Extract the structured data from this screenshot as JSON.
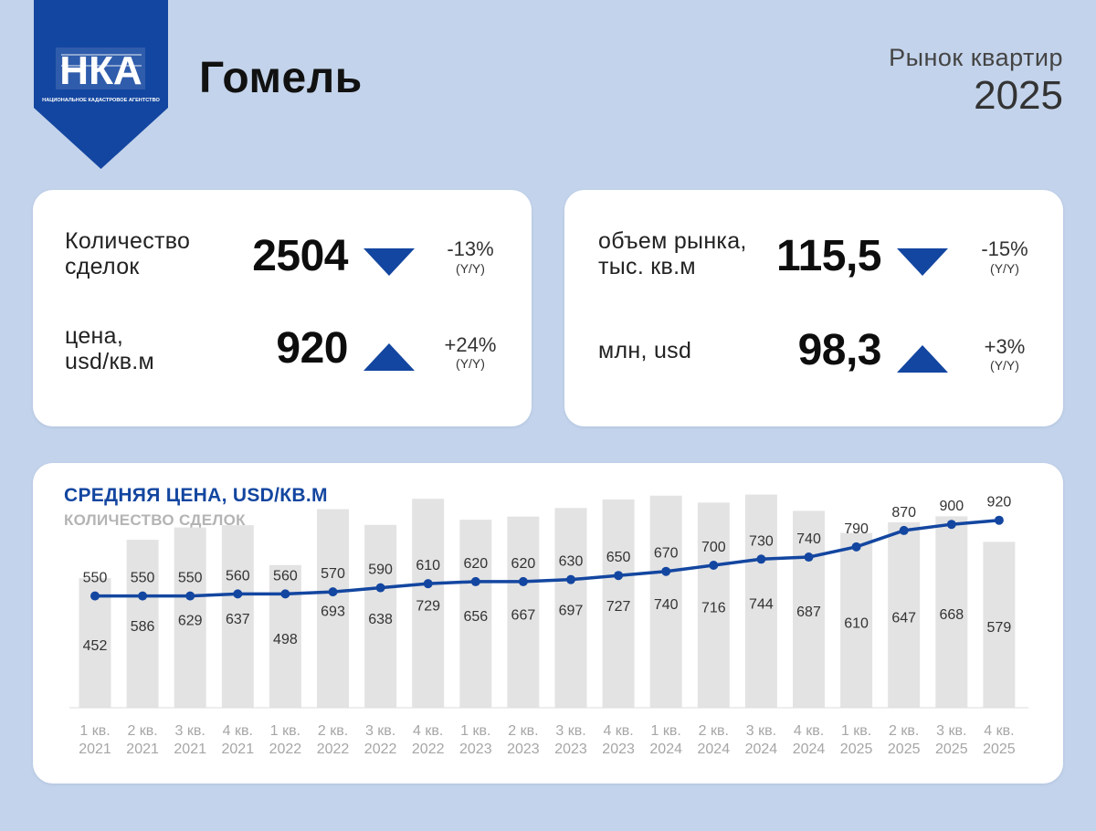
{
  "header": {
    "logo_text": "НКА",
    "logo_caption": "НАЦИОНАЛЬНОЕ КАДАСТРОВОЕ АГЕНТСТВО",
    "city": "Гомель",
    "report_name": "Рынок квартир",
    "year": "2025"
  },
  "colors": {
    "background": "#c3d3eb",
    "brand_blue": "#1346a0",
    "bar_gray": "#e3e3e3",
    "card": "#ffffff"
  },
  "kpi_left": [
    {
      "label": "Количество\nсделок",
      "value": "2504",
      "direction": "down",
      "change": "-13%",
      "period": "(Y/Y)"
    },
    {
      "label": "цена,\nusd/кв.м",
      "value": "920",
      "direction": "up",
      "change": "+24%",
      "period": "(Y/Y)"
    }
  ],
  "kpi_right": [
    {
      "label": "объем рынка,\nтыс. кв.м",
      "value": "115,5",
      "direction": "down",
      "change": "-15%",
      "period": "(Y/Y)"
    },
    {
      "label": "млн, usd",
      "value": "98,3",
      "direction": "up",
      "change": "+3%",
      "period": "(Y/Y)"
    }
  ],
  "chart_data": {
    "type": "bar",
    "title": "СРЕДНЯЯ ЦЕНА, USD/КВ.М",
    "subtitle": "КОЛИЧЕСТВО СДЕЛОК",
    "categories": [
      [
        "1 кв.",
        "2021"
      ],
      [
        "2 кв.",
        "2021"
      ],
      [
        "3 кв.",
        "2021"
      ],
      [
        "4 кв.",
        "2021"
      ],
      [
        "1 кв.",
        "2022"
      ],
      [
        "2 кв.",
        "2022"
      ],
      [
        "3 кв.",
        "2022"
      ],
      [
        "4 кв.",
        "2022"
      ],
      [
        "1 кв.",
        "2023"
      ],
      [
        "2 кв.",
        "2023"
      ],
      [
        "3 кв.",
        "2023"
      ],
      [
        "4 кв.",
        "2023"
      ],
      [
        "1 кв.",
        "2024"
      ],
      [
        "2 кв.",
        "2024"
      ],
      [
        "3 кв.",
        "2024"
      ],
      [
        "4 кв.",
        "2024"
      ],
      [
        "1 кв.",
        "2025"
      ],
      [
        "2 кв.",
        "2025"
      ],
      [
        "3 кв.",
        "2025"
      ],
      [
        "4 кв.",
        "2025"
      ]
    ],
    "series": [
      {
        "name": "КОЛИЧЕСТВО СДЕЛОК",
        "type": "bar",
        "color": "#e3e3e3",
        "values": [
          452,
          586,
          629,
          637,
          498,
          693,
          638,
          729,
          656,
          667,
          697,
          727,
          740,
          716,
          744,
          687,
          610,
          647,
          668,
          579
        ]
      },
      {
        "name": "СРЕДНЯЯ ЦЕНА, USD/КВ.М",
        "type": "line",
        "color": "#1346a0",
        "values": [
          550,
          550,
          550,
          560,
          560,
          570,
          590,
          610,
          620,
          620,
          630,
          650,
          670,
          700,
          730,
          740,
          790,
          870,
          900,
          920
        ]
      }
    ],
    "grid": false,
    "legend": "none"
  }
}
